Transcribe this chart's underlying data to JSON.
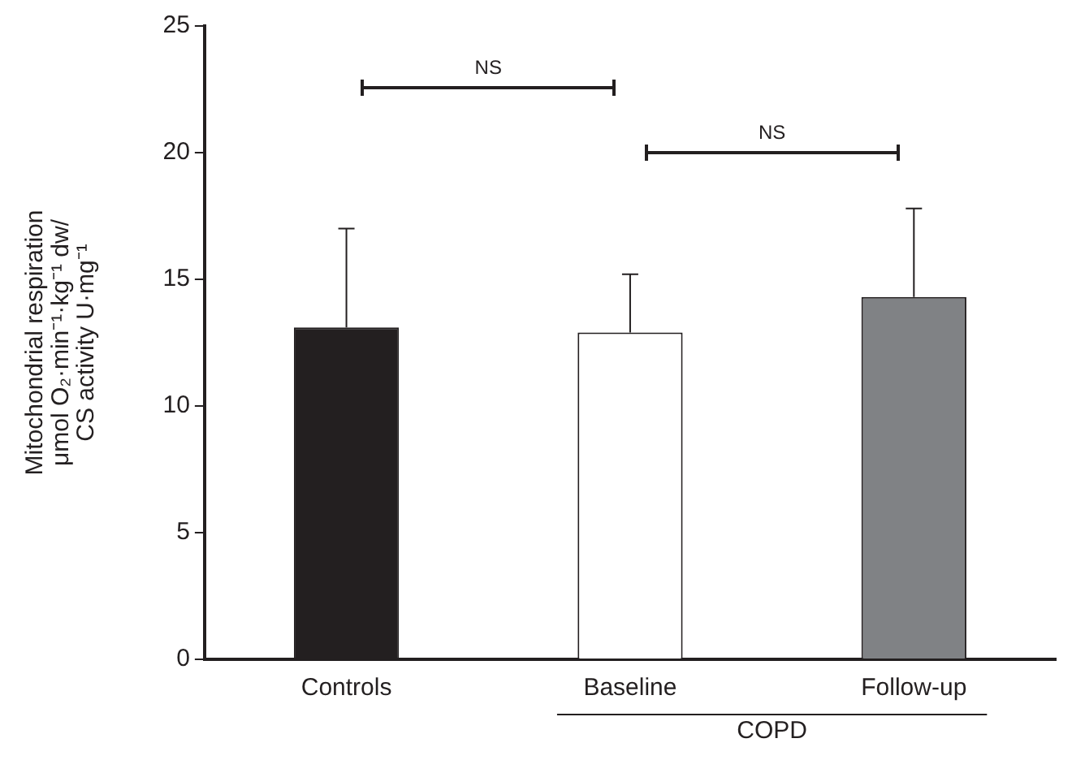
{
  "chart_data": {
    "type": "bar",
    "ylabel": "Mitochondrial respiration\nμmol O₂·min⁻¹·kg⁻¹ dw/\nCS activity U·mg⁻¹",
    "categories": [
      "Controls",
      "Baseline",
      "Follow-up"
    ],
    "values": [
      13.1,
      12.9,
      14.3
    ],
    "colors": [
      "#231f20",
      "#ffffff",
      "#808285"
    ],
    "errors": [
      [
        13.1,
        17.0
      ],
      [
        12.9,
        15.2
      ],
      [
        14.3,
        17.8
      ]
    ],
    "ylim": [
      0,
      25
    ],
    "yticks": [
      0,
      5,
      10,
      15,
      20,
      25
    ],
    "grid": false,
    "legend": false,
    "annotations": [
      "NS",
      "NS",
      "COPD"
    ]
  }
}
